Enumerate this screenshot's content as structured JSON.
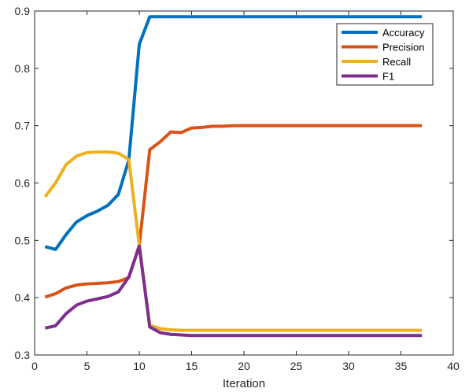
{
  "chart_data": {
    "type": "line",
    "xlabel": "Iteration",
    "ylabel": "",
    "xlim": [
      0,
      40
    ],
    "ylim": [
      0.3,
      0.9
    ],
    "xticks": [
      0,
      5,
      10,
      15,
      20,
      25,
      30,
      35,
      40
    ],
    "yticks": [
      0.3,
      0.4,
      0.5,
      0.6,
      0.7,
      0.8,
      0.9
    ],
    "grid": false,
    "legend_position": "top-right",
    "x": [
      1,
      2,
      3,
      4,
      5,
      6,
      7,
      8,
      9,
      10,
      11,
      12,
      13,
      14,
      15,
      16,
      17,
      18,
      19,
      20,
      21,
      22,
      23,
      24,
      25,
      26,
      27,
      28,
      29,
      30,
      31,
      32,
      33,
      34,
      35,
      36,
      37
    ],
    "series": [
      {
        "name": "Accuracy",
        "color": "#0072BD",
        "values": [
          0.489,
          0.484,
          0.51,
          0.532,
          0.543,
          0.551,
          0.561,
          0.58,
          0.64,
          0.842,
          0.89,
          0.89,
          0.89,
          0.89,
          0.89,
          0.89,
          0.89,
          0.89,
          0.89,
          0.89,
          0.89,
          0.89,
          0.89,
          0.89,
          0.89,
          0.89,
          0.89,
          0.89,
          0.89,
          0.89,
          0.89,
          0.89,
          0.89,
          0.89,
          0.89,
          0.89,
          0.89
        ]
      },
      {
        "name": "Precision",
        "color": "#D95319",
        "values": [
          0.401,
          0.407,
          0.417,
          0.422,
          0.424,
          0.425,
          0.426,
          0.428,
          0.435,
          0.491,
          0.658,
          0.672,
          0.689,
          0.688,
          0.696,
          0.697,
          0.699,
          0.699,
          0.7,
          0.7,
          0.7,
          0.7,
          0.7,
          0.7,
          0.7,
          0.7,
          0.7,
          0.7,
          0.7,
          0.7,
          0.7,
          0.7,
          0.7,
          0.7,
          0.7,
          0.7,
          0.7
        ]
      },
      {
        "name": "Recall",
        "color": "#EDB120",
        "values": [
          0.576,
          0.6,
          0.632,
          0.647,
          0.653,
          0.654,
          0.654,
          0.652,
          0.641,
          0.491,
          0.352,
          0.346,
          0.344,
          0.343,
          0.343,
          0.343,
          0.343,
          0.343,
          0.343,
          0.343,
          0.343,
          0.343,
          0.343,
          0.343,
          0.343,
          0.343,
          0.343,
          0.343,
          0.343,
          0.343,
          0.343,
          0.343,
          0.343,
          0.343,
          0.343,
          0.343,
          0.343
        ]
      },
      {
        "name": "F1",
        "color": "#7E2F8E",
        "values": [
          0.347,
          0.351,
          0.372,
          0.387,
          0.394,
          0.398,
          0.402,
          0.41,
          0.436,
          0.49,
          0.349,
          0.339,
          0.336,
          0.335,
          0.334,
          0.334,
          0.334,
          0.334,
          0.334,
          0.334,
          0.334,
          0.334,
          0.334,
          0.334,
          0.334,
          0.334,
          0.334,
          0.334,
          0.334,
          0.334,
          0.334,
          0.334,
          0.334,
          0.334,
          0.334,
          0.334,
          0.334
        ]
      }
    ]
  }
}
